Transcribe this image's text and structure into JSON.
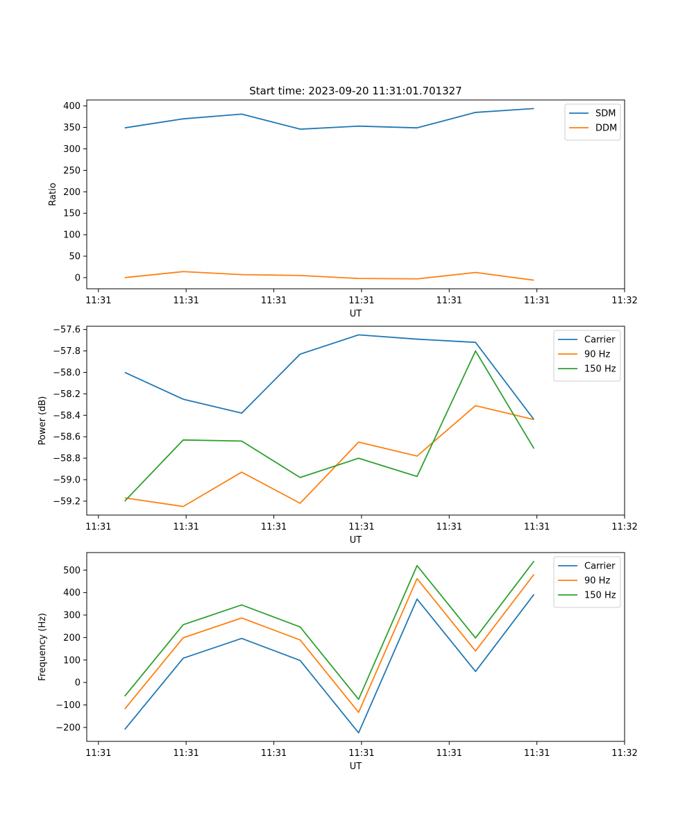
{
  "figure": {
    "title": "Start time: 2023-09-20 11:31:01.701327"
  },
  "colors": {
    "blue": "#1f77b4",
    "orange": "#ff7f0e",
    "green": "#2ca02c"
  },
  "chart_data": [
    {
      "type": "line",
      "title": "Start time: 2023-09-20 11:31:01.701327",
      "xlabel": "UT",
      "ylabel": "Ratio",
      "x": [
        1,
        2,
        3,
        4,
        5,
        6,
        7,
        8
      ],
      "xlim": [
        0.35,
        9.55
      ],
      "x_ticks": [
        0.55,
        2.05,
        3.55,
        5.05,
        6.55,
        8.05,
        9.55
      ],
      "x_tick_labels": [
        "11:31",
        "11:31",
        "11:31",
        "11:31",
        "11:31",
        "11:31",
        "11:32"
      ],
      "ylim": [
        -26,
        414
      ],
      "y_ticks": [
        0,
        50,
        100,
        150,
        200,
        250,
        300,
        350,
        400
      ],
      "y_tick_labels": [
        "0",
        "50",
        "100",
        "150",
        "200",
        "250",
        "300",
        "350",
        "400"
      ],
      "legend": "top-right",
      "series": [
        {
          "name": "SDM",
          "color": "#1f77b4",
          "values": [
            349,
            370,
            381,
            346,
            353,
            349,
            385,
            394
          ]
        },
        {
          "name": "DDM",
          "color": "#ff7f0e",
          "values": [
            0,
            14,
            7,
            5,
            -2,
            -3,
            12,
            -6
          ]
        }
      ]
    },
    {
      "type": "line",
      "xlabel": "UT",
      "ylabel": "Power (dB)",
      "x": [
        1,
        2,
        3,
        4,
        5,
        6,
        7,
        8
      ],
      "xlim": [
        0.35,
        9.55
      ],
      "x_ticks": [
        0.55,
        2.05,
        3.55,
        5.05,
        6.55,
        8.05,
        9.55
      ],
      "x_tick_labels": [
        "11:31",
        "11:31",
        "11:31",
        "11:31",
        "11:31",
        "11:31",
        "11:32"
      ],
      "ylim": [
        -59.33,
        -57.57
      ],
      "y_ticks": [
        -59.2,
        -59.0,
        -58.8,
        -58.6,
        -58.4,
        -58.2,
        -58.0,
        -57.8,
        -57.6
      ],
      "y_tick_labels": [
        "−59.2",
        "−59.0",
        "−58.8",
        "−58.6",
        "−58.4",
        "−58.2",
        "−58.0",
        "−57.8",
        "−57.6"
      ],
      "legend": "top-right",
      "series": [
        {
          "name": "Carrier",
          "color": "#1f77b4",
          "values": [
            -58.0,
            -58.25,
            -58.38,
            -57.83,
            -57.65,
            -57.69,
            -57.72,
            -58.44
          ]
        },
        {
          "name": "90 Hz",
          "color": "#ff7f0e",
          "values": [
            -59.17,
            -59.25,
            -58.93,
            -59.22,
            -58.65,
            -58.78,
            -58.31,
            -58.44
          ]
        },
        {
          "name": "150 Hz",
          "color": "#2ca02c",
          "values": [
            -59.2,
            -58.63,
            -58.64,
            -58.98,
            -58.8,
            -58.97,
            -57.8,
            -58.71
          ]
        }
      ]
    },
    {
      "type": "line",
      "xlabel": "UT",
      "ylabel": "Frequency (Hz)",
      "x": [
        1,
        2,
        3,
        4,
        5,
        6,
        7,
        8
      ],
      "xlim": [
        0.35,
        9.55
      ],
      "x_ticks": [
        0.55,
        2.05,
        3.55,
        5.05,
        6.55,
        8.05,
        9.55
      ],
      "x_tick_labels": [
        "11:31",
        "11:31",
        "11:31",
        "11:31",
        "11:31",
        "11:31",
        "11:32"
      ],
      "ylim": [
        -262,
        578
      ],
      "y_ticks": [
        -200,
        -100,
        0,
        100,
        200,
        300,
        400,
        500
      ],
      "y_tick_labels": [
        "−200",
        "−100",
        "0",
        "100",
        "200",
        "300",
        "400",
        "500"
      ],
      "legend": "top-right",
      "series": [
        {
          "name": "Carrier",
          "color": "#1f77b4",
          "values": [
            -209,
            108,
            196,
            98,
            -224,
            371,
            49,
            392
          ]
        },
        {
          "name": "90 Hz",
          "color": "#ff7f0e",
          "values": [
            -118,
            199,
            287,
            189,
            -133,
            462,
            140,
            481
          ]
        },
        {
          "name": "150 Hz",
          "color": "#2ca02c",
          "values": [
            -61,
            257,
            345,
            247,
            -75,
            520,
            198,
            540
          ]
        }
      ]
    }
  ]
}
